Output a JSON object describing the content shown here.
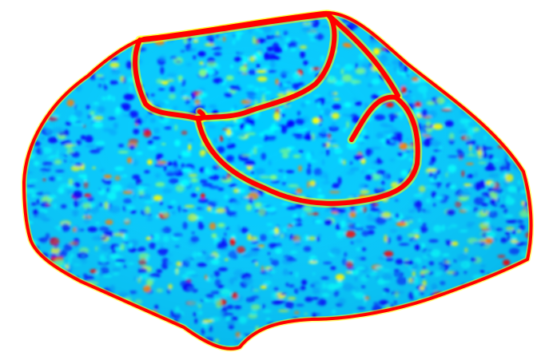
{
  "figure": {
    "colormap": {
      "name": "jet",
      "stops": [
        "#0000ff",
        "#00aaff",
        "#00ffff",
        "#7fff7f",
        "#ffff00",
        "#ff7f00",
        "#ff0000"
      ]
    },
    "background": "#ffffff",
    "rim_color": "#ff0000",
    "base_color": "#00ccff"
  }
}
